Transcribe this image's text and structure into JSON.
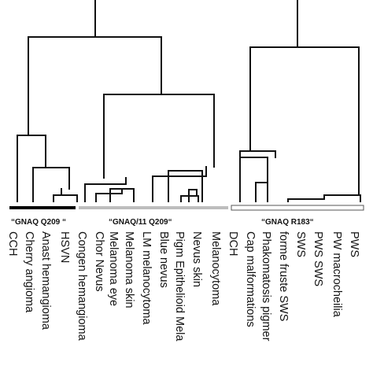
{
  "groups": [
    {
      "label": "“GNAQ Q209 “",
      "bar_style": "solid",
      "bar_color": "#000000"
    },
    {
      "label": "“GNAQ/11 Q209“",
      "bar_style": "solid",
      "bar_color": "#bdbdbd"
    },
    {
      "label": "“GNAQ R183“",
      "bar_style": "outline",
      "bar_color": "#555555"
    }
  ],
  "leaves": [
    "CCH",
    "Cherry angioma",
    "Anast hemangioma",
    "HSVN",
    "Congen hemangioma",
    "Chor Nevus",
    "Melanoma eye",
    "Melanoma skin",
    "LM melanocytoma",
    "Blue nevus",
    "Pigm Epithelioid Mela",
    "Nevus skin",
    "Melanocytoma",
    "DCH",
    "Cap malformations",
    "Phakomatosis pigmer",
    "forme fruste SWS",
    "SWS",
    "PWS SWS",
    "PW macrocheilia",
    "PWS"
  ]
}
